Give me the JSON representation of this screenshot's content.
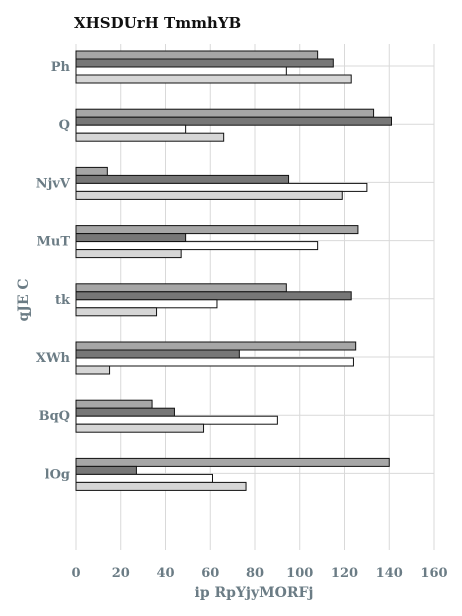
{
  "chart_data": {
    "type": "bar",
    "orientation": "horizontal",
    "title": "XHSDUrH TmmhYB",
    "xlabel": "ip RpYjyMORFj",
    "ylabel": "qJE C",
    "xlim": [
      0,
      160
    ],
    "xticks": [
      0,
      20,
      40,
      60,
      80,
      100,
      120,
      140,
      160
    ],
    "grid": true,
    "legend": "none",
    "categories": [
      "Ph",
      "Q",
      "NjvV",
      "MuT",
      "tk",
      "XWh",
      "BqQ",
      "lOg"
    ],
    "series": [
      {
        "color": "#a6a6a6",
        "values": [
          108,
          133,
          14,
          126,
          94,
          125,
          34,
          140
        ]
      },
      {
        "color": "#777777",
        "values": [
          115,
          141,
          95,
          49,
          123,
          73,
          44,
          27
        ]
      },
      {
        "color": "#ffffff",
        "values": [
          94,
          49,
          130,
          108,
          63,
          124,
          90,
          61
        ]
      },
      {
        "color": "#d6d6d6",
        "values": [
          123,
          66,
          119,
          47,
          36,
          15,
          57,
          76
        ]
      }
    ]
  }
}
